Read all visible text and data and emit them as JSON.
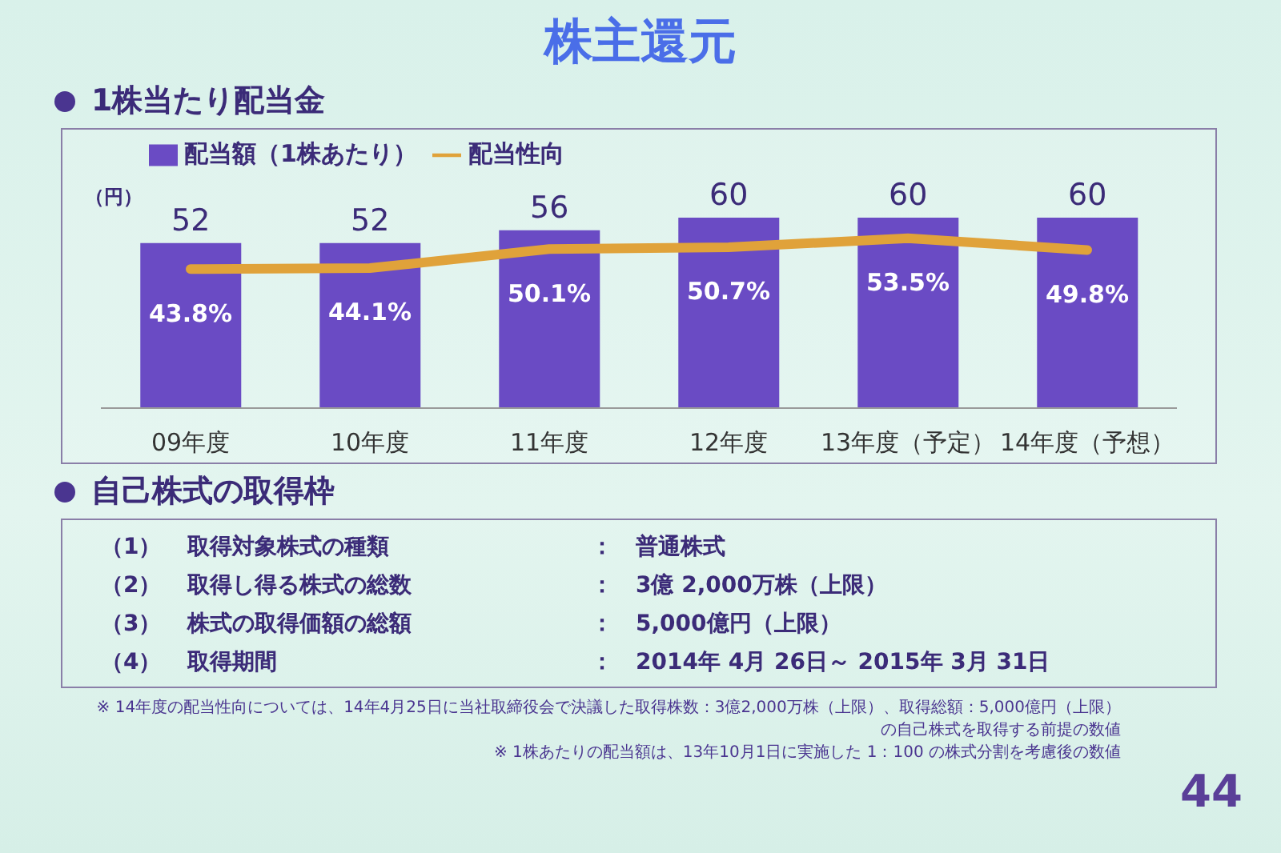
{
  "chart_data": {
    "type": "bar",
    "title": "株主還元",
    "subtitle": "1株当たり配当金",
    "ylabel": "（円）",
    "categories": [
      "09年度",
      "10年度",
      "11年度",
      "12年度",
      "13年度（予定）",
      "14年度（予想）"
    ],
    "series": [
      {
        "name": "配当額（1株あたり）",
        "color": "#6a4bc4",
        "values": [
          52,
          52,
          56,
          60,
          60,
          60
        ],
        "value_labels": [
          "52",
          "52",
          "56",
          "60",
          "60",
          "60"
        ]
      },
      {
        "name": "配当性向",
        "type": "line",
        "color": "#e0a23a",
        "values": [
          43.8,
          44.1,
          50.1,
          50.7,
          53.5,
          49.8
        ],
        "value_labels": [
          "43.8%",
          "44.1%",
          "50.1%",
          "50.7%",
          "53.5%",
          "49.8%"
        ]
      }
    ],
    "tick_labels": "x",
    "legend": "top left",
    "annotations": [
      "自己株式の取得枠",
      "（1）",
      "取得対象株式の種類",
      "：　普通株式",
      "（2）",
      "取得し得る株式の総数",
      "：　3億 2,000万株（上限）",
      "（3）",
      "株式の取得価額の総額",
      "：　5,000億円（上限）",
      "（4）",
      "取得期間",
      "：　2014年 4月 26日～ 2015年 3月 31日",
      "※ 14年度の配当性向については、14年4月25日に当社取締役会で決議した取得株数：3億2,000万株（上限）、取得総額：5,000億円（上限）の自己株式を取得する前提の数値",
      "※ 1株あたりの配当額は、13年10月1日に実施した 1：100 の株式分割を考慮後の数値",
      "44"
    ]
  }
}
